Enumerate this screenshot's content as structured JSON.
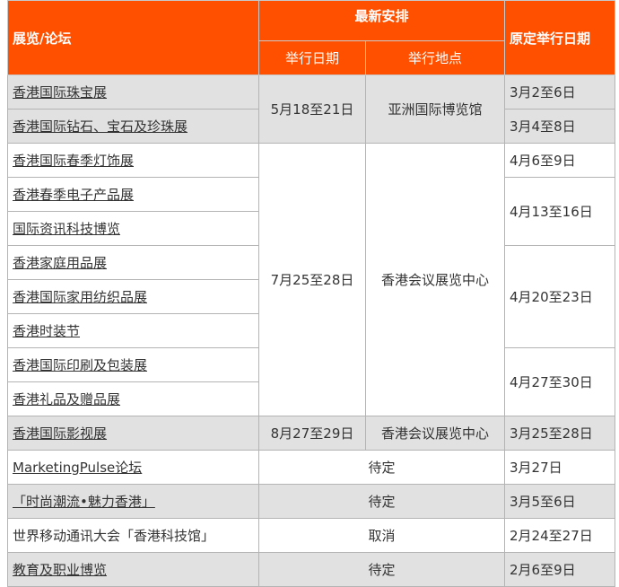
{
  "header": {
    "col1": "展览/论坛",
    "group": "最新安排",
    "date": "举行日期",
    "venue": "举行地点",
    "orig": "原定举行日期"
  },
  "rows": [
    {
      "name": "香港国际珠宝展",
      "orig": "3月2至6日"
    },
    {
      "name": "香港国际钻石、宝石及珍珠展",
      "orig": "3月4至8日"
    },
    {
      "name": "香港国际春季灯饰展",
      "orig": "4月6至9日"
    },
    {
      "name": "香港春季电子产品展"
    },
    {
      "name": "国际资讯科技博览",
      "orig": "4月13至16日"
    },
    {
      "name": "香港家庭用品展"
    },
    {
      "name": "香港国际家用纺织品展",
      "orig": "4月20至23日"
    },
    {
      "name": "香港时装节"
    },
    {
      "name": "香港国际印刷及包装展"
    },
    {
      "name": "香港礼品及赠品展",
      "orig": "4月27至30日"
    },
    {
      "name": "香港国际影视展",
      "date": "8月27至29日",
      "venue": "香港会议展览中心",
      "orig": "3月25至28日"
    },
    {
      "name": "MarketingPulse论坛",
      "status": "待定",
      "orig": "3月27日"
    },
    {
      "name": "「时尚潮流•魅力香港」",
      "status": "待定",
      "orig": "3月5至6日"
    },
    {
      "name": "世界移动通讯大会「香港科技馆」",
      "status": "取消",
      "orig": "2月24至27日"
    },
    {
      "name": "教育及职业博览",
      "status": "待定",
      "orig": "2月6至9日"
    }
  ],
  "groups": [
    {
      "date": "5月18至21日",
      "venue": "亚洲国际博览馆"
    },
    {
      "date": "7月25至28日",
      "venue": "香港会议展览中心"
    }
  ]
}
